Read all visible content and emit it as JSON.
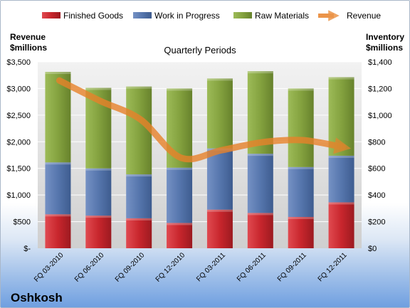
{
  "chart_data": {
    "type": "bar",
    "stacked": true,
    "title": "Quarterly Periods",
    "company": "Oshkosh",
    "categories": [
      "FQ 03-2010",
      "FQ 06-2010",
      "FQ 09-2010",
      "FQ 12-2010",
      "FQ 03-2011",
      "FQ 06-2011",
      "FQ 09-2011",
      "FQ 12-2011"
    ],
    "left_axis": {
      "label_line1": "Revenue",
      "label_line2": "$millions",
      "ticks": [
        "$-",
        "$500",
        "$1,000",
        "$1,500",
        "$2,000",
        "$2,500",
        "$3,000",
        "$3,500"
      ],
      "range": [
        0,
        3500
      ]
    },
    "right_axis": {
      "label_line1": "Inventory",
      "label_line2": "$millions",
      "ticks": [
        "$0",
        "$200",
        "$400",
        "$600",
        "$800",
        "$1,000",
        "$1,200",
        "$1,400"
      ],
      "range": [
        0,
        1400
      ]
    },
    "series": [
      {
        "name": "Finished Goods",
        "axis": "right",
        "color": "#c0242b",
        "values": [
          255,
          245,
          225,
          190,
          290,
          265,
          235,
          345
        ]
      },
      {
        "name": "Work in Progress",
        "axis": "right",
        "color": "#4f6fa6",
        "values": [
          390,
          355,
          330,
          415,
          460,
          445,
          375,
          350
        ]
      },
      {
        "name": "Raw Materials",
        "axis": "right",
        "color": "#7f9c3c",
        "values": [
          680,
          605,
          660,
          595,
          525,
          620,
          590,
          590
        ]
      },
      {
        "name": "Revenue",
        "axis": "left",
        "type": "line",
        "color": "#e8822a",
        "values": [
          3150,
          2770,
          2420,
          1700,
          1840,
          1990,
          2030,
          1900
        ]
      }
    ],
    "grid": true,
    "legend_position": "top"
  }
}
